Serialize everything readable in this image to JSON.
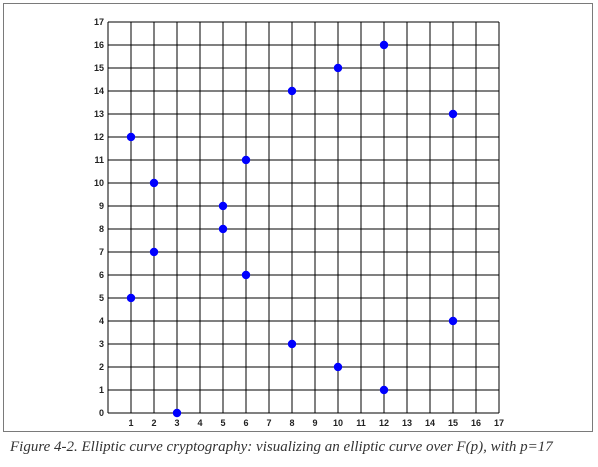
{
  "caption": "Figure 4-2. Elliptic curve cryptography: visualizing an elliptic curve over F(p), with p=17",
  "chart_data": {
    "type": "scatter",
    "title": "",
    "xlabel": "",
    "ylabel": "",
    "xlim": [
      0,
      17
    ],
    "ylim": [
      0,
      17
    ],
    "xticks": [
      1,
      2,
      3,
      4,
      5,
      6,
      7,
      8,
      9,
      10,
      11,
      12,
      13,
      14,
      15,
      16,
      17
    ],
    "yticks": [
      0,
      1,
      2,
      3,
      4,
      5,
      6,
      7,
      8,
      9,
      10,
      11,
      12,
      13,
      14,
      15,
      16,
      17
    ],
    "grid": true,
    "point_color": "#0000ff",
    "points": [
      [
        1,
        5
      ],
      [
        1,
        12
      ],
      [
        2,
        7
      ],
      [
        2,
        10
      ],
      [
        3,
        0
      ],
      [
        5,
        8
      ],
      [
        5,
        9
      ],
      [
        6,
        6
      ],
      [
        6,
        11
      ],
      [
        8,
        3
      ],
      [
        8,
        14
      ],
      [
        10,
        2
      ],
      [
        10,
        15
      ],
      [
        12,
        1
      ],
      [
        12,
        16
      ],
      [
        15,
        4
      ],
      [
        15,
        13
      ]
    ]
  }
}
